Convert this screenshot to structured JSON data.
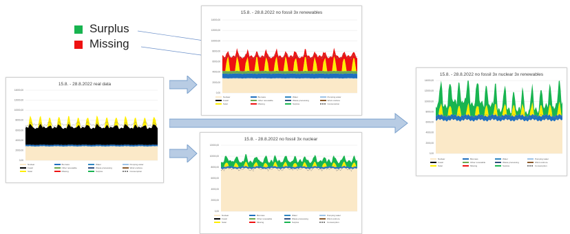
{
  "colors": {
    "Nuclear": "#fbe9c8",
    "Biomass": "#1f6fbf",
    "Water": "#2e86c1",
    "Pumping water": "#9dc3e6",
    "Fossil": "#000000",
    "Other renewable": "#6aa84f",
    "Waste processing": "#2f4f7f",
    "Wind onshore": "#8a5a2b",
    "Solar": "#ffee00",
    "Missing": "#ee1111",
    "Surplus": "#18b450",
    "Consumption": "#7f7f7f"
  },
  "big_legend": {
    "surplus_label": "Surplus",
    "missing_label": "Missing",
    "surplus_color": "#18b450",
    "missing_color": "#ee1111"
  },
  "legend_labels": [
    "Nuclear",
    "Biomass",
    "Water",
    "Pumping water",
    "Fossil",
    "Other renewable",
    "Waste processing",
    "Wind onshore",
    "Solar",
    "Missing",
    "Surplus",
    "Consumption"
  ],
  "chart_data": [
    {
      "type": "area",
      "title": "15.8. - 28.8.2022 real data",
      "ylim": [
        0,
        14000
      ],
      "yticks": [
        "0,00",
        "2000,00",
        "4000,00",
        "6000,00",
        "8000,00",
        "10000,00",
        "12000,00",
        "14000,00"
      ],
      "series": [
        {
          "name": "Nuclear",
          "values": [
            2800
          ]
        },
        {
          "name": "Biomass",
          "values": [
            300
          ]
        },
        {
          "name": "Fossil",
          "values": [
            4000
          ]
        },
        {
          "name": "Solar",
          "values": [
            1800
          ]
        }
      ]
    },
    {
      "type": "area",
      "title": "15.8. - 28.8.2022 no fossil 3x renewables",
      "ylim": [
        0,
        14000
      ],
      "yticks": [
        "0,00",
        "2000,00",
        "4000,00",
        "6000,00",
        "8000,00",
        "10000,00",
        "12000,00",
        "14000,00"
      ],
      "series": [
        {
          "name": "Nuclear",
          "values": [
            2800
          ]
        },
        {
          "name": "Biomass",
          "values": [
            900
          ]
        },
        {
          "name": "Other renewable",
          "values": [
            500
          ]
        },
        {
          "name": "Solar",
          "values": [
            3000
          ]
        },
        {
          "name": "Missing",
          "values": [
            2500
          ]
        }
      ]
    },
    {
      "type": "area",
      "title": "15.8. - 28.8.2022 no fossil 3x nuclear",
      "ylim": [
        0,
        12000
      ],
      "yticks": [
        "0,00",
        "2000,00",
        "4000,00",
        "6000,00",
        "8000,00",
        "10000,00",
        "12000,00"
      ],
      "series": [
        {
          "name": "Nuclear",
          "values": [
            7800
          ]
        },
        {
          "name": "Biomass",
          "values": [
            300
          ]
        },
        {
          "name": "Solar",
          "values": [
            800
          ]
        },
        {
          "name": "Surplus",
          "values": [
            1200
          ]
        }
      ]
    },
    {
      "type": "area",
      "title": "15.8. - 28.8.2022 no fossil 3x nuclear 3x renewables",
      "ylim": [
        0,
        14000
      ],
      "yticks": [
        "0,00",
        "2000,00",
        "4000,00",
        "6000,00",
        "8000,00",
        "10000,00",
        "12000,00",
        "14000,00"
      ],
      "series": [
        {
          "name": "Nuclear",
          "values": [
            6400
          ]
        },
        {
          "name": "Biomass",
          "values": [
            900
          ]
        },
        {
          "name": "Solar",
          "values": [
            2500
          ]
        },
        {
          "name": "Surplus",
          "values": [
            3500
          ]
        }
      ]
    }
  ]
}
